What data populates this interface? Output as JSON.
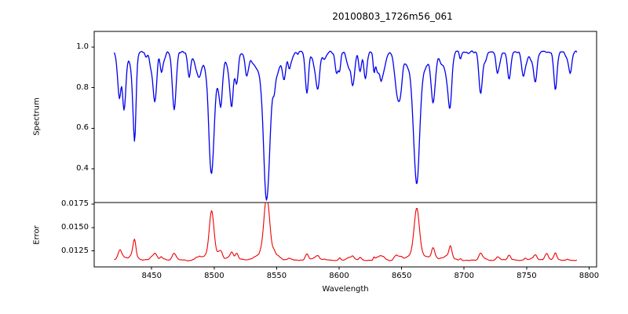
{
  "title": "20100803_1726m56_061",
  "axes": {
    "xlabel": "Wavelength",
    "ylabel_top": "Spectrum",
    "ylabel_bottom": "Error"
  },
  "chart_data": [
    {
      "type": "line",
      "name": "spectrum",
      "title": "20100803_1726m56_061",
      "ylabel": "Spectrum",
      "xlabel": "Wavelength",
      "color": "#0000ee",
      "line_width": 1.3,
      "x_range": [
        8420,
        8790
      ],
      "sample_step": 0.6,
      "xlim": [
        8404,
        8806
      ],
      "ylim": [
        0.234,
        1.077
      ],
      "xticks": [
        8450,
        8500,
        8550,
        8600,
        8650,
        8700,
        8750,
        8800
      ],
      "xtick_labels": [
        "8450",
        "8500",
        "8550",
        "8600",
        "8650",
        "8700",
        "8750",
        "8800"
      ],
      "yticks": [
        0.4,
        0.6,
        0.8,
        1.0
      ],
      "ytick_labels": [
        "0.4",
        "0.6",
        "0.8",
        "1.0"
      ],
      "grid": false,
      "continuum": 0.975,
      "noise_amplitude": 0.013,
      "random_seed": 20100803,
      "absorption_lines": [
        {
          "center": 8424.5,
          "depth": 0.13,
          "width": 1.2
        },
        {
          "center": 8428.0,
          "depth": 0.22,
          "width": 1.3
        },
        {
          "center": 8436.0,
          "depth": 0.33,
          "width": 1.4
        },
        {
          "center": 8452.0,
          "depth": 0.19,
          "width": 1.4
        },
        {
          "center": 8468.0,
          "depth": 0.26,
          "width": 1.5
        },
        {
          "center": 8480.0,
          "depth": 0.12,
          "width": 1.2
        },
        {
          "center": 8498.0,
          "depth": 0.475,
          "width": 2.0,
          "wing_depth": 0.1,
          "wing_width": 7
        },
        {
          "center": 8514.0,
          "depth": 0.26,
          "width": 1.4
        },
        {
          "center": 8518.0,
          "depth": 0.15,
          "width": 1.2
        },
        {
          "center": 8526.0,
          "depth": 0.1,
          "width": 1.2
        },
        {
          "center": 8542.1,
          "depth": 0.59,
          "width": 2.4,
          "wing_depth": 0.12,
          "wing_width": 9
        },
        {
          "center": 8556.0,
          "depth": 0.1,
          "width": 1.2
        },
        {
          "center": 8574.0,
          "depth": 0.13,
          "width": 1.2
        },
        {
          "center": 8583.0,
          "depth": 0.16,
          "width": 1.4
        },
        {
          "center": 8598.0,
          "depth": 0.1,
          "width": 1.2
        },
        {
          "center": 8611.0,
          "depth": 0.16,
          "width": 1.4
        },
        {
          "center": 8621.0,
          "depth": 0.13,
          "width": 1.2
        },
        {
          "center": 8648.0,
          "depth": 0.13,
          "width": 1.3
        },
        {
          "center": 8662.1,
          "depth": 0.535,
          "width": 2.2,
          "wing_depth": 0.11,
          "wing_width": 8
        },
        {
          "center": 8675.0,
          "depth": 0.2,
          "width": 1.4
        },
        {
          "center": 8688.6,
          "depth": 0.27,
          "width": 1.5
        },
        {
          "center": 8713.0,
          "depth": 0.11,
          "width": 1.2
        },
        {
          "center": 8736.0,
          "depth": 0.13,
          "width": 1.3
        },
        {
          "center": 8747.0,
          "depth": 0.1,
          "width": 1.2
        },
        {
          "center": 8757.0,
          "depth": 0.14,
          "width": 1.3
        },
        {
          "center": 8773.0,
          "depth": 0.13,
          "width": 1.3
        },
        {
          "center": 8785.0,
          "depth": 0.1,
          "width": 1.2
        }
      ],
      "micro_line_count": 55,
      "micro_depth_range": [
        0.02,
        0.1
      ],
      "micro_width_range": [
        0.7,
        1.8
      ]
    },
    {
      "type": "line",
      "name": "error",
      "ylabel": "Error",
      "color": "#ee0000",
      "line_width": 1.1,
      "x_range": [
        8420,
        8790
      ],
      "sample_step": 0.6,
      "xlim": [
        8404,
        8806
      ],
      "ylim": [
        0.0108,
        0.01767
      ],
      "yticks": [
        0.0125,
        0.015,
        0.0175
      ],
      "ytick_labels": [
        "0.0125",
        "0.0150",
        "0.0175"
      ],
      "grid": false,
      "baseline": 0.0115,
      "noise_amplitude": 0.00011,
      "random_seed": 1726,
      "micro_bump_scale": 0.0035,
      "peaks": [
        {
          "center": 8425.0,
          "height": 0.0007,
          "width": 1.2
        },
        {
          "center": 8436.0,
          "height": 0.0016,
          "width": 1.3
        },
        {
          "center": 8452.0,
          "height": 0.0005,
          "width": 1.3
        },
        {
          "center": 8468.0,
          "height": 0.0006,
          "width": 1.4
        },
        {
          "center": 8498.0,
          "height": 0.0044,
          "width": 1.8
        },
        {
          "center": 8514.0,
          "height": 0.0007,
          "width": 1.2
        },
        {
          "center": 8518.0,
          "height": 0.0006,
          "width": 1.1
        },
        {
          "center": 8542.1,
          "height": 0.0057,
          "width": 2.2
        },
        {
          "center": 8574.0,
          "height": 0.0004,
          "width": 1.1
        },
        {
          "center": 8583.0,
          "height": 0.0004,
          "width": 1.2
        },
        {
          "center": 8611.0,
          "height": 0.0004,
          "width": 1.2
        },
        {
          "center": 8662.1,
          "height": 0.0047,
          "width": 2.0
        },
        {
          "center": 8675.0,
          "height": 0.001,
          "width": 1.2
        },
        {
          "center": 8689.0,
          "height": 0.0013,
          "width": 1.2
        },
        {
          "center": 8713.0,
          "height": 0.0004,
          "width": 1.1
        },
        {
          "center": 8736.0,
          "height": 0.0005,
          "width": 1.1
        },
        {
          "center": 8757.0,
          "height": 0.0005,
          "width": 1.2
        },
        {
          "center": 8766.0,
          "height": 0.0006,
          "width": 1.2
        },
        {
          "center": 8773.0,
          "height": 0.0005,
          "width": 1.1
        }
      ]
    }
  ]
}
